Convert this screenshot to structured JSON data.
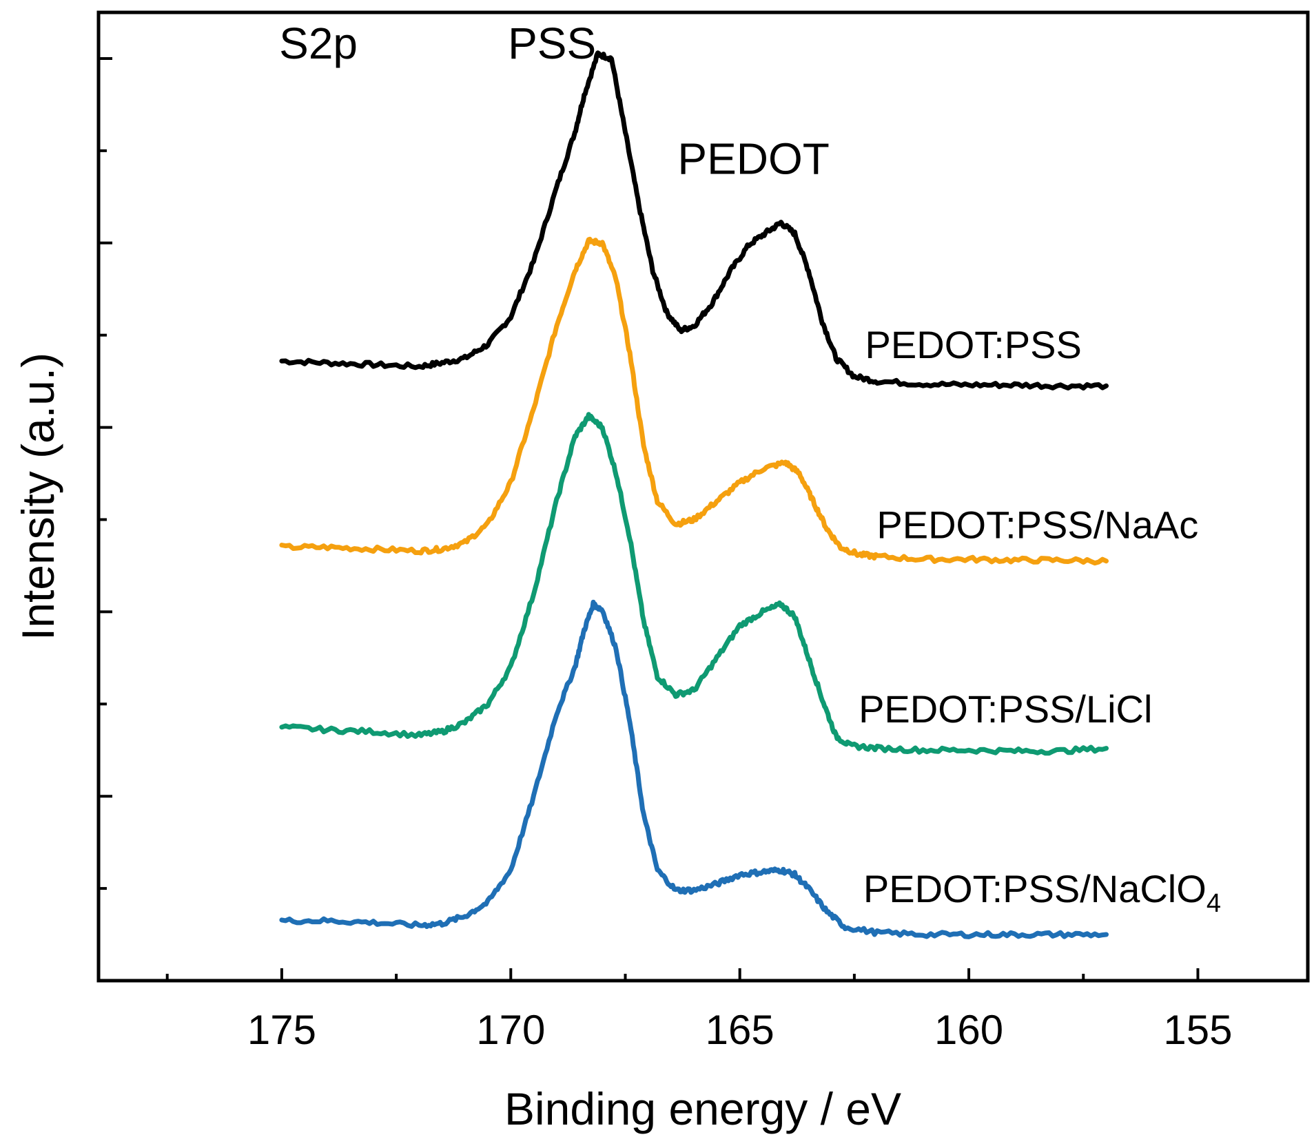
{
  "chart_data": {
    "type": "line",
    "title": "",
    "xlabel": "Binding energy / eV",
    "ylabel": "Intensity (a.u.)",
    "xlim": [
      179,
      152.6
    ],
    "ylim": [
      0,
      10.5
    ],
    "x_ticks": [
      175,
      170,
      165,
      160,
      155
    ],
    "x_minor_ticks": [
      177.5,
      172.5,
      167.5,
      162.5,
      157.5,
      152.5
    ],
    "y_ticks": [
      1,
      2,
      3,
      4,
      5,
      6,
      7,
      8,
      9,
      10
    ],
    "annotations": [
      {
        "name": "annotation-s2p",
        "text": "S2p",
        "x": 174.2,
        "y": 10.0
      },
      {
        "name": "annotation-pss",
        "text": "PSS",
        "x": 169.1,
        "y": 10.0
      },
      {
        "name": "annotation-pedot",
        "text": "PEDOT",
        "x": 164.7,
        "y": 8.75
      }
    ],
    "series": [
      {
        "name": "PEDOT:PSS",
        "color": "#000000",
        "label_pos": [
          159.9,
          6.75
        ],
        "points": [
          [
            175,
            6.72
          ],
          [
            174,
            6.7
          ],
          [
            173,
            6.68
          ],
          [
            172,
            6.66
          ],
          [
            171.5,
            6.7
          ],
          [
            171,
            6.75
          ],
          [
            170.5,
            6.9
          ],
          [
            170,
            7.2
          ],
          [
            169.5,
            7.8
          ],
          [
            169,
            8.6
          ],
          [
            168.6,
            9.2
          ],
          [
            168.4,
            9.6
          ],
          [
            168.1,
            10.05
          ],
          [
            167.8,
            10.0
          ],
          [
            167.5,
            9.2
          ],
          [
            167.2,
            8.4
          ],
          [
            166.9,
            7.7
          ],
          [
            166.6,
            7.25
          ],
          [
            166.3,
            7.05
          ],
          [
            166,
            7.1
          ],
          [
            165.6,
            7.35
          ],
          [
            165.2,
            7.7
          ],
          [
            164.8,
            7.98
          ],
          [
            164.4,
            8.12
          ],
          [
            164.1,
            8.22
          ],
          [
            163.8,
            8.1
          ],
          [
            163.5,
            7.7
          ],
          [
            163.2,
            7.15
          ],
          [
            162.9,
            6.75
          ],
          [
            162.5,
            6.55
          ],
          [
            162,
            6.5
          ],
          [
            161,
            6.47
          ],
          [
            160,
            6.46
          ],
          [
            159,
            6.46
          ],
          [
            158,
            6.45
          ],
          [
            157,
            6.45
          ]
        ]
      },
      {
        "name": "PEDOT:PSS/NaAc",
        "color": "#f5a00f",
        "label_pos": [
          158.5,
          4.8
        ],
        "points": [
          [
            175,
            4.7
          ],
          [
            174,
            4.7
          ],
          [
            173,
            4.68
          ],
          [
            172,
            4.66
          ],
          [
            171.5,
            4.68
          ],
          [
            171,
            4.75
          ],
          [
            170.5,
            4.95
          ],
          [
            170,
            5.4
          ],
          [
            169.5,
            6.2
          ],
          [
            169,
            7.1
          ],
          [
            168.6,
            7.7
          ],
          [
            168.3,
            8.02
          ],
          [
            168,
            8.0
          ],
          [
            167.7,
            7.6
          ],
          [
            167.4,
            6.8
          ],
          [
            167.1,
            5.8
          ],
          [
            166.8,
            5.2
          ],
          [
            166.4,
            4.95
          ],
          [
            166,
            5.0
          ],
          [
            165.5,
            5.2
          ],
          [
            165,
            5.4
          ],
          [
            164.5,
            5.55
          ],
          [
            164,
            5.62
          ],
          [
            163.7,
            5.5
          ],
          [
            163.4,
            5.2
          ],
          [
            163.1,
            4.9
          ],
          [
            162.8,
            4.7
          ],
          [
            162.4,
            4.62
          ],
          [
            162,
            4.6
          ],
          [
            161,
            4.57
          ],
          [
            160,
            4.57
          ],
          [
            159,
            4.56
          ],
          [
            158,
            4.56
          ],
          [
            157,
            4.55
          ]
        ]
      },
      {
        "name": "PEDOT:PSS/LiCl",
        "color": "#0f9a72",
        "label_pos": [
          159.2,
          2.8
        ],
        "points": [
          [
            175,
            2.75
          ],
          [
            174,
            2.72
          ],
          [
            173,
            2.7
          ],
          [
            172,
            2.66
          ],
          [
            171.5,
            2.7
          ],
          [
            171,
            2.8
          ],
          [
            170.5,
            3.0
          ],
          [
            170,
            3.4
          ],
          [
            169.5,
            4.2
          ],
          [
            169,
            5.2
          ],
          [
            168.6,
            5.9
          ],
          [
            168.3,
            6.12
          ],
          [
            168,
            6.0
          ],
          [
            167.7,
            5.5
          ],
          [
            167.4,
            4.8
          ],
          [
            167.1,
            3.9
          ],
          [
            166.8,
            3.3
          ],
          [
            166.4,
            3.1
          ],
          [
            166,
            3.15
          ],
          [
            165.5,
            3.5
          ],
          [
            165,
            3.85
          ],
          [
            164.5,
            4.0
          ],
          [
            164.1,
            4.08
          ],
          [
            163.8,
            3.95
          ],
          [
            163.5,
            3.5
          ],
          [
            163.2,
            3.05
          ],
          [
            162.9,
            2.65
          ],
          [
            162.6,
            2.55
          ],
          [
            162,
            2.52
          ],
          [
            161,
            2.5
          ],
          [
            160,
            2.5
          ],
          [
            159,
            2.49
          ],
          [
            158,
            2.49
          ],
          [
            157,
            2.52
          ]
        ]
      },
      {
        "name": "PEDOT:PSS/NaClO4",
        "color": "#1f6fb5",
        "label_pos": [
          158.4,
          0.85
        ],
        "points": [
          [
            175,
            0.65
          ],
          [
            174,
            0.65
          ],
          [
            173,
            0.63
          ],
          [
            172,
            0.6
          ],
          [
            171.5,
            0.62
          ],
          [
            171,
            0.7
          ],
          [
            170.5,
            0.85
          ],
          [
            170,
            1.2
          ],
          [
            169.5,
            2.0
          ],
          [
            169,
            2.9
          ],
          [
            168.6,
            3.4
          ],
          [
            168.4,
            3.8
          ],
          [
            168.2,
            4.08
          ],
          [
            168,
            4.02
          ],
          [
            167.7,
            3.6
          ],
          [
            167.4,
            2.8
          ],
          [
            167.1,
            1.8
          ],
          [
            166.8,
            1.2
          ],
          [
            166.4,
            0.98
          ],
          [
            166,
            0.98
          ],
          [
            165.5,
            1.05
          ],
          [
            165,
            1.15
          ],
          [
            164.5,
            1.18
          ],
          [
            164.1,
            1.2
          ],
          [
            163.8,
            1.15
          ],
          [
            163.5,
            1.0
          ],
          [
            163.1,
            0.75
          ],
          [
            162.7,
            0.58
          ],
          [
            162,
            0.52
          ],
          [
            161,
            0.5
          ],
          [
            160,
            0.5
          ],
          [
            159,
            0.5
          ],
          [
            158,
            0.5
          ],
          [
            157,
            0.5
          ]
        ]
      }
    ]
  }
}
